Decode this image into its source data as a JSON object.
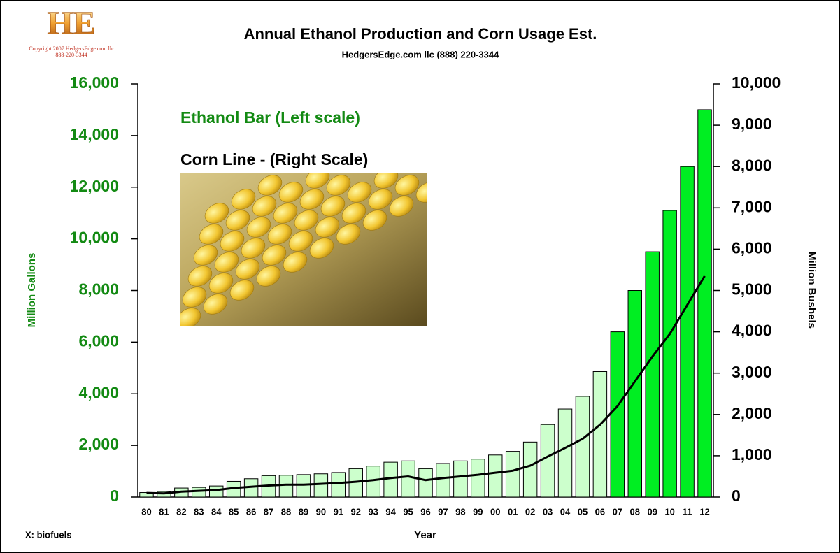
{
  "chart_data": {
    "type": "bar",
    "title": "Annual Ethanol Production and Corn Usage Est.",
    "subtitle": "HedgersEdge.com llc (888) 220-3344",
    "logo": {
      "mark": "HE",
      "copyright": "Copyright 2007  HedgersEdge.com llc",
      "phone": "888-220-3344"
    },
    "source": "X: biofuels",
    "x_label": "Year",
    "y_label": "Million Gallons",
    "y2_label": "Million Bushels",
    "categories": [
      "80",
      "81",
      "82",
      "83",
      "84",
      "85",
      "86",
      "87",
      "88",
      "89",
      "90",
      "91",
      "92",
      "93",
      "94",
      "95",
      "96",
      "97",
      "98",
      "99",
      "00",
      "01",
      "02",
      "03",
      "04",
      "05",
      "06",
      "07",
      "08",
      "09",
      "10",
      "11",
      "12"
    ],
    "series": [
      {
        "name": "Ethanol Bar (Left scale)",
        "type": "bar",
        "color": "#138a13",
        "colors": [
          "#ccffcc",
          "#ccffcc",
          "#ccffcc",
          "#ccffcc",
          "#ccffcc",
          "#ccffcc",
          "#ccffcc",
          "#ccffcc",
          "#ccffcc",
          "#ccffcc",
          "#ccffcc",
          "#ccffcc",
          "#ccffcc",
          "#ccffcc",
          "#ccffcc",
          "#ccffcc",
          "#ccffcc",
          "#ccffcc",
          "#ccffcc",
          "#ccffcc",
          "#ccffcc",
          "#ccffcc",
          "#ccffcc",
          "#ccffcc",
          "#ccffcc",
          "#ccffcc",
          "#ccffcc",
          "#00ee22",
          "#00ee22",
          "#00ee22",
          "#00ee22",
          "#00ee22",
          "#00ee22"
        ],
        "values": [
          175,
          215,
          350,
          375,
          430,
          610,
          710,
          830,
          845,
          870,
          900,
          950,
          1100,
          1200,
          1350,
          1400,
          1100,
          1300,
          1400,
          1470,
          1630,
          1770,
          2130,
          2810,
          3410,
          3900,
          4860,
          6400,
          8000,
          9500,
          11100,
          12800,
          15000
        ]
      },
      {
        "name": "Corn Line - (Right Scale)",
        "type": "line",
        "axis": "y2",
        "color": "#000000",
        "values": [
          100,
          90,
          130,
          150,
          170,
          220,
          250,
          280,
          300,
          300,
          320,
          340,
          370,
          410,
          460,
          500,
          410,
          460,
          500,
          540,
          590,
          640,
          760,
          980,
          1190,
          1410,
          1750,
          2200,
          2800,
          3400,
          3950,
          4650,
          5350
        ]
      }
    ],
    "ylim": [
      0,
      16000
    ],
    "yticks": [
      0,
      {
        "value": 2000,
        "label": "2,000"
      },
      {
        "value": 4000,
        "label": "4,000"
      },
      {
        "value": 6000,
        "label": "6,000"
      },
      {
        "value": 8000,
        "label": "8,000"
      },
      {
        "value": 10000,
        "label": "10,000"
      },
      {
        "value": 12000,
        "label": "12,000"
      },
      {
        "value": 14000,
        "label": "14,000"
      },
      {
        "value": 16000,
        "label": "16,000"
      }
    ],
    "y2lim": [
      0,
      10000
    ],
    "y2ticks": [
      0,
      {
        "value": 1000,
        "label": "1,000"
      },
      {
        "value": 2000,
        "label": "2,000"
      },
      {
        "value": 3000,
        "label": "3,000"
      },
      {
        "value": 4000,
        "label": "4,000"
      },
      {
        "value": 5000,
        "label": "5,000"
      },
      {
        "value": 6000,
        "label": "6,000"
      },
      {
        "value": 7000,
        "label": "7,000"
      },
      {
        "value": 8000,
        "label": "8,000"
      },
      {
        "value": 9000,
        "label": "9,000"
      },
      {
        "value": 10000,
        "label": "10,000"
      }
    ],
    "grid": false
  }
}
